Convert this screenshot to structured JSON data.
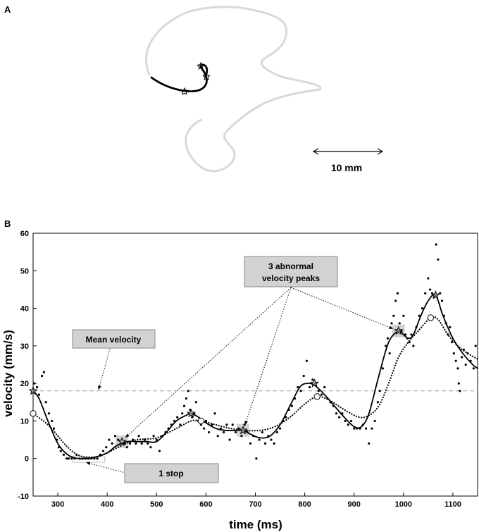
{
  "panels": {
    "a_label": "A",
    "b_label": "B"
  },
  "panel_a": {
    "scale_label": "10 mm",
    "outline_color": "#d9d9d9",
    "path_color": "#000000"
  },
  "chart_data": {
    "type": "scatter",
    "title": "",
    "xlabel": "time (ms)",
    "ylabel": "velocity (mm/s)",
    "xlim": [
      250,
      1150
    ],
    "ylim": [
      -10,
      60
    ],
    "xticks": [
      300,
      400,
      500,
      600,
      700,
      800,
      900,
      1000,
      1100
    ],
    "yticks": [
      -10,
      0,
      10,
      20,
      30,
      40,
      50,
      60
    ],
    "grid": false,
    "mean_velocity": 18,
    "series": [
      {
        "style": "solid",
        "color": "#000000",
        "x": [
          250,
          262,
          280,
          300,
          320,
          340,
          360,
          380,
          400,
          420,
          440,
          460,
          480,
          500,
          520,
          540,
          560,
          570,
          585,
          600,
          620,
          640,
          660,
          675,
          690,
          710,
          730,
          750,
          770,
          790,
          805,
          820,
          840,
          860,
          880,
          900,
          915,
          930,
          950,
          970,
          990,
          1000,
          1010,
          1020,
          1035,
          1050,
          1065,
          1080,
          1100,
          1120,
          1140,
          1150
        ],
        "y": [
          18,
          16,
          10,
          4,
          1,
          0,
          0,
          0.5,
          1.5,
          3.5,
          4.5,
          4.5,
          4.5,
          4.5,
          7,
          10,
          11.5,
          12,
          11,
          9.5,
          8,
          7.5,
          7.5,
          7.5,
          6.5,
          5.5,
          6,
          9,
          14,
          19,
          20,
          19.5,
          17,
          14,
          11,
          8.5,
          8.5,
          12,
          22,
          31,
          34,
          33,
          32,
          33,
          38,
          42,
          43.5,
          38,
          32,
          28,
          25,
          24
        ]
      },
      {
        "style": "dotted",
        "color": "#000000",
        "x": [
          250,
          280,
          300,
          320,
          340,
          360,
          380,
          400,
          430,
          460,
          500,
          540,
          570,
          590,
          620,
          650,
          680,
          710,
          740,
          770,
          800,
          825,
          850,
          880,
          910,
          930,
          950,
          970,
          990,
          1010,
          1030,
          1055,
          1070,
          1090,
          1110,
          1130,
          1150
        ],
        "y": [
          12,
          9,
          6,
          3,
          1,
          0.3,
          0.5,
          1.5,
          3.5,
          5,
          5.5,
          8,
          10,
          10,
          9,
          8,
          7.5,
          7.5,
          8.5,
          11,
          14.5,
          16.5,
          15.5,
          13,
          11,
          11.5,
          14,
          20,
          27,
          31,
          34,
          37.5,
          37,
          33,
          30,
          28,
          26.5
        ]
      }
    ],
    "star_markers": [
      [
        250,
        18
      ],
      [
        430,
        4.5
      ],
      [
        570,
        12
      ],
      [
        675,
        7.5
      ],
      [
        820,
        20
      ],
      [
        990,
        34
      ],
      [
        1065,
        43.5
      ]
    ],
    "circle_markers": [
      [
        250,
        12
      ],
      [
        590,
        10
      ],
      [
        825,
        16.5
      ],
      [
        1055,
        37.5
      ]
    ],
    "scatter_points": [
      [
        252,
        20
      ],
      [
        258,
        19
      ],
      [
        262,
        17
      ],
      [
        268,
        22
      ],
      [
        272,
        23
      ],
      [
        276,
        15
      ],
      [
        282,
        12
      ],
      [
        288,
        10
      ],
      [
        292,
        8
      ],
      [
        298,
        5
      ],
      [
        302,
        3
      ],
      [
        306,
        2
      ],
      [
        312,
        1
      ],
      [
        318,
        0
      ],
      [
        322,
        0
      ],
      [
        328,
        0
      ],
      [
        334,
        0
      ],
      [
        338,
        1
      ],
      [
        344,
        0
      ],
      [
        350,
        0
      ],
      [
        356,
        0
      ],
      [
        362,
        0
      ],
      [
        368,
        0
      ],
      [
        374,
        0
      ],
      [
        380,
        0
      ],
      [
        386,
        1
      ],
      [
        392,
        2
      ],
      [
        398,
        3
      ],
      [
        404,
        5
      ],
      [
        410,
        4
      ],
      [
        416,
        6
      ],
      [
        422,
        5
      ],
      [
        428,
        4
      ],
      [
        434,
        4
      ],
      [
        440,
        3
      ],
      [
        446,
        4
      ],
      [
        452,
        5
      ],
      [
        458,
        4
      ],
      [
        464,
        6
      ],
      [
        470,
        4
      ],
      [
        476,
        5
      ],
      [
        482,
        4
      ],
      [
        488,
        3
      ],
      [
        494,
        6
      ],
      [
        500,
        5
      ],
      [
        506,
        2
      ],
      [
        512,
        6
      ],
      [
        518,
        7
      ],
      [
        524,
        8
      ],
      [
        530,
        9
      ],
      [
        536,
        10
      ],
      [
        542,
        11
      ],
      [
        548,
        9
      ],
      [
        552,
        12
      ],
      [
        556,
        14
      ],
      [
        560,
        16
      ],
      [
        564,
        18
      ],
      [
        568,
        13
      ],
      [
        572,
        11
      ],
      [
        576,
        12
      ],
      [
        580,
        15
      ],
      [
        584,
        10
      ],
      [
        590,
        9
      ],
      [
        596,
        8
      ],
      [
        600,
        10
      ],
      [
        606,
        7
      ],
      [
        612,
        9
      ],
      [
        618,
        12
      ],
      [
        624,
        6
      ],
      [
        630,
        8
      ],
      [
        636,
        7
      ],
      [
        642,
        9
      ],
      [
        648,
        5
      ],
      [
        654,
        9
      ],
      [
        660,
        7
      ],
      [
        666,
        8
      ],
      [
        672,
        6
      ],
      [
        678,
        9
      ],
      [
        684,
        7
      ],
      [
        690,
        4
      ],
      [
        696,
        6
      ],
      [
        702,
        0
      ],
      [
        708,
        5
      ],
      [
        714,
        7
      ],
      [
        720,
        4
      ],
      [
        726,
        6
      ],
      [
        732,
        5
      ],
      [
        738,
        4
      ],
      [
        744,
        7
      ],
      [
        750,
        8
      ],
      [
        756,
        10
      ],
      [
        762,
        11
      ],
      [
        768,
        13
      ],
      [
        774,
        14
      ],
      [
        780,
        16
      ],
      [
        786,
        19
      ],
      [
        792,
        18
      ],
      [
        798,
        22
      ],
      [
        804,
        26
      ],
      [
        810,
        19
      ],
      [
        816,
        21
      ],
      [
        822,
        20
      ],
      [
        828,
        18
      ],
      [
        834,
        17
      ],
      [
        840,
        19
      ],
      [
        846,
        16
      ],
      [
        852,
        15
      ],
      [
        858,
        14
      ],
      [
        864,
        12
      ],
      [
        870,
        11
      ],
      [
        876,
        12
      ],
      [
        882,
        10
      ],
      [
        888,
        9
      ],
      [
        894,
        10
      ],
      [
        900,
        8
      ],
      [
        906,
        8
      ],
      [
        912,
        8
      ],
      [
        918,
        9
      ],
      [
        924,
        8
      ],
      [
        930,
        4
      ],
      [
        936,
        8
      ],
      [
        942,
        10
      ],
      [
        948,
        15
      ],
      [
        952,
        18
      ],
      [
        958,
        24
      ],
      [
        964,
        30
      ],
      [
        968,
        32
      ],
      [
        972,
        28
      ],
      [
        976,
        36
      ],
      [
        980,
        38
      ],
      [
        984,
        42
      ],
      [
        988,
        44
      ],
      [
        992,
        36
      ],
      [
        996,
        34
      ],
      [
        1000,
        38
      ],
      [
        1004,
        33
      ],
      [
        1008,
        32
      ],
      [
        1012,
        31
      ],
      [
        1016,
        33
      ],
      [
        1020,
        30
      ],
      [
        1026,
        35
      ],
      [
        1032,
        38
      ],
      [
        1038,
        40
      ],
      [
        1044,
        44
      ],
      [
        1050,
        48
      ],
      [
        1054,
        45
      ],
      [
        1058,
        44
      ],
      [
        1062,
        43
      ],
      [
        1066,
        57
      ],
      [
        1070,
        53
      ],
      [
        1074,
        44
      ],
      [
        1078,
        42
      ],
      [
        1082,
        38
      ],
      [
        1086,
        36
      ],
      [
        1090,
        33
      ],
      [
        1094,
        35
      ],
      [
        1098,
        31
      ],
      [
        1102,
        28
      ],
      [
        1106,
        26
      ],
      [
        1110,
        24
      ],
      [
        1112,
        20
      ],
      [
        1114,
        18
      ],
      [
        1118,
        27
      ],
      [
        1122,
        29
      ],
      [
        1126,
        25
      ],
      [
        1130,
        28
      ],
      [
        1136,
        26
      ],
      [
        1142,
        24
      ],
      [
        1146,
        30
      ]
    ],
    "annotations": {
      "mean_velocity": "Mean velocity",
      "peaks_line1": "3 abnormal",
      "peaks_line2": "velocity peaks",
      "stop": "1 stop"
    },
    "highlight_boxes": [
      [
        430,
        4.5
      ],
      [
        675,
        7.5
      ],
      [
        990,
        34
      ]
    ],
    "stop_region": [
      330,
      395,
      -1,
      0.5
    ]
  }
}
